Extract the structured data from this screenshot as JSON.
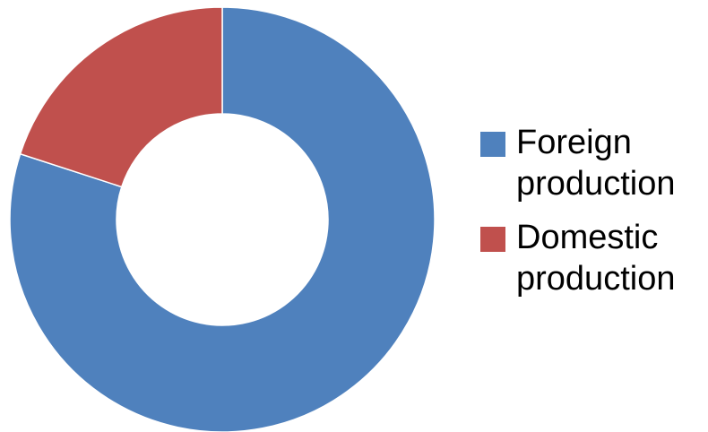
{
  "chart_data": {
    "type": "pie",
    "donut": true,
    "title": "",
    "categories": [
      "Foreign production",
      "Domestic production"
    ],
    "values": [
      80,
      20
    ],
    "unit": "%",
    "colors": [
      "#4F81BD",
      "#C0504D"
    ],
    "start_angle_deg": 0,
    "direction": "clockwise",
    "legend_position": "right",
    "legend": [
      {
        "label": "Foreign\nproduction",
        "color": "#4F81BD"
      },
      {
        "label": "Domestic\nproduction",
        "color": "#C0504D"
      }
    ]
  }
}
